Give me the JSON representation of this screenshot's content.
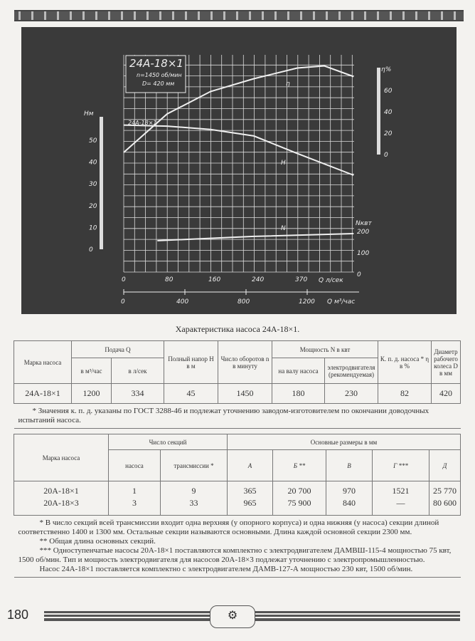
{
  "chart": {
    "title": "24А-18×1",
    "speed": "n=1450 об/мин",
    "diameter": "D= 420 мм",
    "curve_label_h_start": "24А-18×1",
    "h_axis_label": "Нм",
    "eta_axis_label": "η%",
    "n_axis_label": "Nквт",
    "q_axis_label": "Q л/сек",
    "q2_axis_label": "Q м³/час",
    "q_ticks": [
      "0",
      "80",
      "160",
      "240",
      "370"
    ],
    "q2_ticks": [
      "0",
      "400",
      "800",
      "1200"
    ],
    "h_ticks": [
      "0",
      "10",
      "20",
      "30",
      "40",
      "50"
    ],
    "eta_ticks": [
      "0",
      "20",
      "40",
      "60"
    ],
    "n_ticks": [
      "0",
      "100",
      "200"
    ],
    "curve_names": {
      "eta": "η",
      "h": "H",
      "n": "N"
    },
    "colors": {
      "background": "#3a3a3a",
      "lines": "#f0f0f0"
    }
  },
  "chart_data": {
    "type": "line",
    "xlabel": "Q л/сек",
    "series": [
      {
        "name": "H",
        "unit": "м",
        "x": [
          0,
          80,
          160,
          240,
          320,
          424
        ],
        "y": [
          57,
          56.5,
          55,
          52,
          44,
          34
        ]
      },
      {
        "name": "η",
        "unit": "%",
        "x": [
          0,
          80,
          160,
          240,
          320,
          370,
          424
        ],
        "y": [
          2,
          38,
          59,
          71,
          81,
          83,
          73
        ]
      },
      {
        "name": "N",
        "unit": "квт",
        "x": [
          62,
          240,
          424
        ],
        "y": [
          157,
          177,
          190
        ]
      }
    ],
    "xlim": [
      0,
      424
    ]
  },
  "caption": "Характеристика насоса 24А-18×1.",
  "table1": {
    "headers": {
      "brand": "Марка насоса",
      "flow": "Подача Q",
      "flow_m3": "в м³/час",
      "flow_ls": "в л/сек",
      "head": "Полный напор H в м",
      "rpm": "Число оборотов n в минуту",
      "power": "Мощность N в квт",
      "power_shaft": "на валу насоса",
      "power_motor": "электродвигателя (рекомендуемая)",
      "eff": "К. п. д. насоса * η в %",
      "diam": "Диаметр рабочего колеса D в мм"
    },
    "row": [
      "24А-18×1",
      "1200",
      "334",
      "45",
      "1450",
      "180",
      "230",
      "82",
      "420"
    ],
    "note": "* Значения к. п. д. указаны по ГОСТ 3288-46 и подлежат уточнению заводом-изготовителем по окончании доводочных испытаний насоса."
  },
  "table2": {
    "headers": {
      "brand": "Марка насоса",
      "sections": "Число секций",
      "sec_pump": "насоса",
      "sec_trans": "трансмиссии *",
      "dims": "Основные размеры в мм",
      "a": "А",
      "b": "Б **",
      "v": "В",
      "g": "Г ***",
      "d": "Д"
    },
    "rows": [
      [
        "20А-18×1",
        "1",
        "9",
        "365",
        "20 700",
        "970",
        "1521",
        "25 770"
      ],
      [
        "20А-18×3",
        "3",
        "33",
        "965",
        "75 900",
        "840",
        "—",
        "80 600"
      ]
    ],
    "notes": [
      "* В число секций всей трансмиссии входит одна верхняя (у опорного корпуса) и одна нижняя (у насоса) секции длиной соответственно 1400 и 1300 мм. Остальные секции называются основными. Длина каждой основной секции 2300 мм.",
      "** Общая длина основных секций.",
      "*** Одноступенчатые насосы 20А-18×1 поставляются комплектно с электродвигателем ДАМВШ-115-4 мощностью 75 квт, 1500 об/мин. Тип и мощность электродвигателя для насосов 20А-18×3 подлежат уточнению с электропромышленностью.",
      "Насос 24А-18×1 поставляется комплектно с электродвигателем ДАМВ-127-А мощностью 230 квт, 1500 об/мин."
    ]
  },
  "footer": {
    "page_number": "180"
  }
}
